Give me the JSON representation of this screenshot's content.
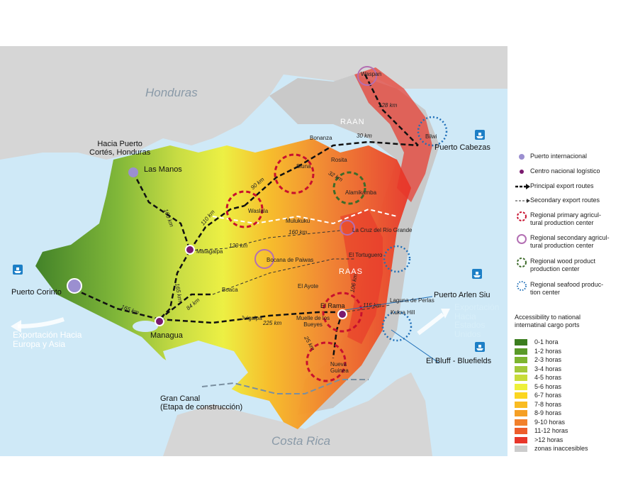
{
  "countries": {
    "north": "Honduras",
    "south": "Costa Rica"
  },
  "regions": {
    "raan": "RAAN",
    "raas": "RAAS"
  },
  "cities": {
    "hacia_puerto": "Hacia Puerto\nCortés, Honduras",
    "las_manos": "Las Manos",
    "matagalpa": "Matagalpa",
    "managua": "Managua",
    "boaca": "Boaca",
    "juigalpa": "Juigalpa",
    "el_ayote": "El Ayote",
    "muelle": "Muelle de los\nBueyes",
    "el_rama": "El Rama",
    "nueva_guinea": "Nueva\nGuinea",
    "waslala": "Waslala",
    "siuna": "Siuna",
    "bonanza": "Bonanza",
    "rosita": "Rosita",
    "alamikamba": "Alamikamba",
    "mulukuku": "Mulukuku",
    "la_cruz": "La Cruz del Río Grande",
    "el_tortuguero": "El Tortuguero",
    "bocana": "Bocana de Paiwas",
    "waspan": "Waspan",
    "bilwi": "Bilwi",
    "laguna": "Laguna de Perlas",
    "kukra_hill": "Kukra Hill",
    "gran_canal": "Gran Canal\n(Etapa de construcción)"
  },
  "distances": {
    "d160_north": "160 km",
    "d110": "110 km",
    "d90": "90 km",
    "d30": "30 km",
    "d32": "32 km",
    "d128": "128 km",
    "d160_mid": "160 km",
    "d120": "120 km",
    "d165_matagalpa": "165 km",
    "d84": "84 km",
    "d165_corinto": "165 km",
    "d225": "225 km",
    "d25": "25 km",
    "d115": "115 km",
    "d106": "106 km"
  },
  "ports": {
    "corinto": "Puerto Corinto",
    "cabezas": "Puerto Cabezas",
    "arlen_siu": "Puerto Arlen Siu",
    "bluff": "El Bluff - Bluefields"
  },
  "exports": {
    "west": "Exportación Hacia\nEuropa y Asia",
    "east": "Exportación\nHacia\nEstados\nUnidos"
  },
  "legend": {
    "items": [
      {
        "label": "Puerto internacional",
        "symbol": "port-dot",
        "color": "#9b8fd0"
      },
      {
        "label": "Centro nacional logístico",
        "symbol": "logistic-dot",
        "color": "#7a1a6e"
      },
      {
        "label": "Principal export routes",
        "symbol": "bold-dashed-arrow",
        "color": "#111111"
      },
      {
        "label": "Secondary export routes",
        "symbol": "thin-dashed-arrow",
        "color": "#333333"
      },
      {
        "label": "Regional primary agricul-\ntural production center",
        "symbol": "red-dashed-circle",
        "color": "#c8102e"
      },
      {
        "label": "Regional secondary agricul-\ntural production center",
        "symbol": "purple-circle",
        "color": "#b36fb3"
      },
      {
        "label": "Regional wood product\nproduction center",
        "symbol": "green-dashed-circle",
        "color": "#3d6b2a"
      },
      {
        "label": "Regional seafood produc-\ntion center",
        "symbol": "blue-dotted-circle",
        "color": "#1f6fb8"
      }
    ],
    "accessibility_title": "Accessibility to national\ninternatinal cargo ports",
    "accessibility": [
      {
        "label": "0-1 hora",
        "color": "#3b7d1e"
      },
      {
        "label": "1-2 horas",
        "color": "#5a9a28"
      },
      {
        "label": "2-3 horas",
        "color": "#7db52f"
      },
      {
        "label": "3-4 horas",
        "color": "#a3c93a"
      },
      {
        "label": "4-5 horas",
        "color": "#c8dc3a"
      },
      {
        "label": "5-6 horas",
        "color": "#eef03a"
      },
      {
        "label": "6-7 horas",
        "color": "#fbd61f"
      },
      {
        "label": "7-8 horas",
        "color": "#f9bc22"
      },
      {
        "label": "8-9 horas",
        "color": "#f59f24"
      },
      {
        "label": "9-10 horas",
        "color": "#f2802a"
      },
      {
        "label": "11-12 horas",
        "color": "#ee5d2b"
      },
      {
        "label": ">12 horas",
        "color": "#e8362a"
      },
      {
        "label": "zonas inaccesibles",
        "color": "#cccccc"
      }
    ]
  },
  "colors": {
    "sea": "#cfe9f7",
    "land_other": "#c9c9c9",
    "route": "#111111"
  }
}
